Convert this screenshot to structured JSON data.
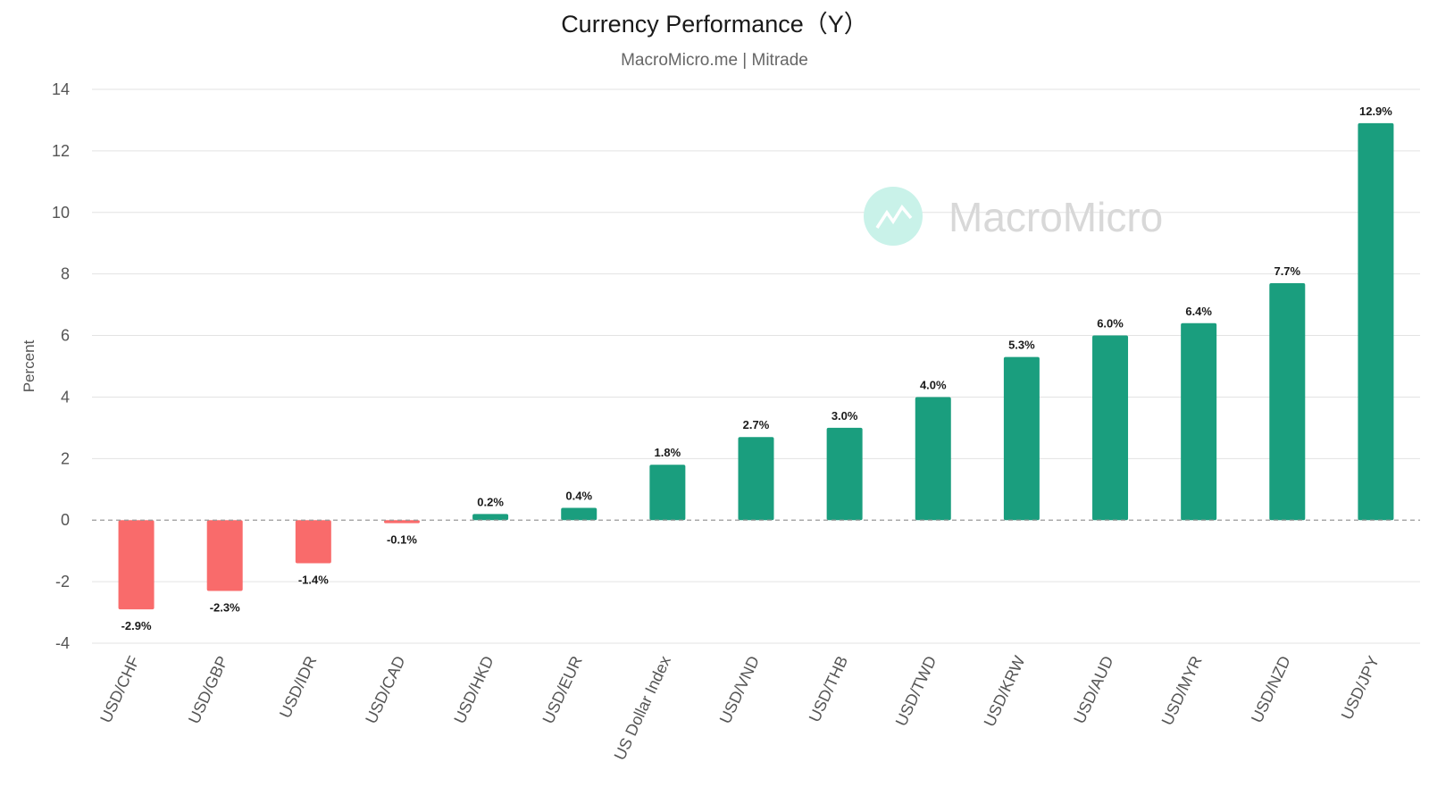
{
  "chart_data": {
    "type": "bar",
    "title": "Currency Performance（Y）",
    "subtitle": "MacroMicro.me | Mitrade",
    "ylabel": "Percent",
    "xlabel": "",
    "ylim": [
      -4,
      14
    ],
    "yticks": [
      -4,
      -2,
      0,
      2,
      4,
      6,
      8,
      10,
      12,
      14
    ],
    "grid": true,
    "legend": "none",
    "categories": [
      "USD/CHF",
      "USD/GBP",
      "USD/IDR",
      "USD/CAD",
      "USD/HKD",
      "USD/EUR",
      "US Dollar Index",
      "USD/VND",
      "USD/THB",
      "USD/TWD",
      "USD/KRW",
      "USD/AUD",
      "USD/MYR",
      "USD/NZD",
      "USD/JPY"
    ],
    "values": [
      -2.9,
      -2.3,
      -1.4,
      -0.1,
      0.2,
      0.4,
      1.8,
      2.7,
      3.0,
      4.0,
      5.3,
      6.0,
      6.4,
      7.7,
      12.9
    ],
    "data_labels": [
      "-2.9%",
      "-2.3%",
      "-1.4%",
      "-0.1%",
      "0.2%",
      "0.4%",
      "1.8%",
      "2.7%",
      "3.0%",
      "4.0%",
      "5.3%",
      "6.0%",
      "6.4%",
      "7.7%",
      "12.9%"
    ],
    "colors": {
      "positive": "#1a9e7e",
      "negative": "#f96b6b",
      "grid": "#e3e3e3",
      "zero_line": "#999999"
    }
  },
  "watermark": {
    "text": "MacroMicro",
    "icon": "macromicro-logo-icon",
    "icon_color": "#c9f2e9"
  }
}
